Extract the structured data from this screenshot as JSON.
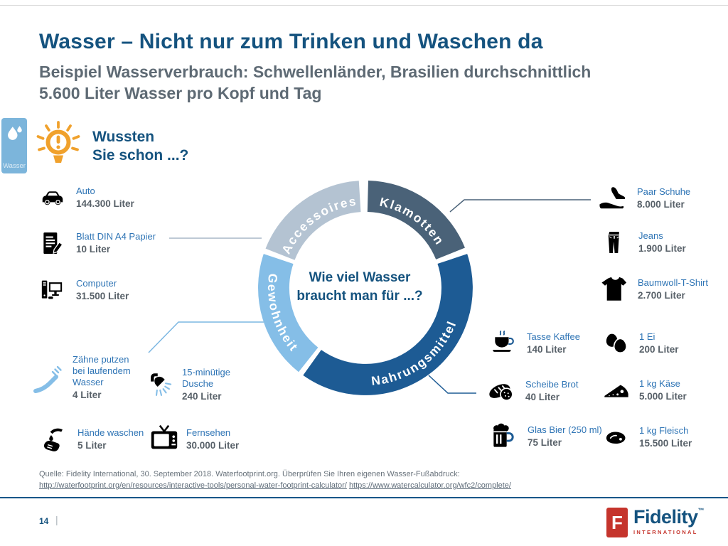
{
  "page": {
    "title": "Wasser – Nicht nur zum Trinken und Waschen da",
    "subtitle": "Beispiel Wasserverbrauch: Schwellenländer, Brasilien durchschnittlich\n5.600 Liter Wasser pro Kopf und Tag",
    "sidebar_tab_label": "Wasser",
    "callout_heading": "Wussten\nSie schon ...?"
  },
  "chart_data": {
    "type": "donut",
    "title": "Wie viel Wasser braucht man für ...?",
    "center_label": "Wie viel Wasser\nbraucht man für ...?",
    "unit": "Liter",
    "legend_position": "on-segments",
    "segments": [
      {
        "label": "Klamotten",
        "color": "#4a6278",
        "start_deg": 1.5,
        "end_deg": 68
      },
      {
        "label": "Nahrungsmittel",
        "color": "#1d5b94",
        "start_deg": 71.5,
        "end_deg": 215.5
      },
      {
        "label": "Gewohnheit",
        "color": "#85bee7",
        "start_deg": 218.5,
        "end_deg": 288.5
      },
      {
        "label": "Accessoires",
        "color": "#b4c3d2",
        "start_deg": 291.5,
        "end_deg": 356.5
      }
    ],
    "items": {
      "auto": {
        "category": "Accessoires",
        "label": "Auto",
        "value": "144.300 Liter",
        "liters": 144300
      },
      "papier": {
        "category": "Accessoires",
        "label": "Blatt DIN A4 Papier",
        "value": "10 Liter",
        "liters": 10
      },
      "computer": {
        "category": "Accessoires",
        "label": "Computer",
        "value": "31.500 Liter",
        "liters": 31500
      },
      "zaehne": {
        "category": "Gewohnheit",
        "label": "Zähne putzen\nbei laufendem\nWasser",
        "value": "4 Liter",
        "liters": 4
      },
      "dusche": {
        "category": "Gewohnheit",
        "label": "15-minütige\nDusche",
        "value": "240 Liter",
        "liters": 240
      },
      "haende": {
        "category": "Gewohnheit",
        "label": "Hände waschen",
        "value": "5 Liter",
        "liters": 5
      },
      "fernsehen": {
        "category": "Gewohnheit",
        "label": "Fernsehen",
        "value": "30.000 Liter",
        "liters": 30000
      },
      "schuhe": {
        "category": "Klamotten",
        "label": "Paar Schuhe",
        "value": "8.000 Liter",
        "liters": 8000
      },
      "jeans": {
        "category": "Klamotten",
        "label": "Jeans",
        "value": "1.900 Liter",
        "liters": 1900
      },
      "tshirt": {
        "category": "Klamotten",
        "label": "Baumwoll-T-Shirt",
        "value": "2.700 Liter",
        "liters": 2700
      },
      "kaffee": {
        "category": "Nahrungsmittel",
        "label": "Tasse Kaffee",
        "value": "140 Liter",
        "liters": 140
      },
      "ei": {
        "category": "Nahrungsmittel",
        "label": "1 Ei",
        "value": "200 Liter",
        "liters": 200
      },
      "brot": {
        "category": "Nahrungsmittel",
        "label": "Scheibe Brot",
        "value": "40 Liter",
        "liters": 40
      },
      "kaese": {
        "category": "Nahrungsmittel",
        "label": "1 kg Käse",
        "value": "5.000 Liter",
        "liters": 5000
      },
      "bier": {
        "category": "Nahrungsmittel",
        "label": "Glas Bier (250 ml)",
        "value": "75 Liter",
        "liters": 75
      },
      "fleisch": {
        "category": "Nahrungsmittel",
        "label": "1 kg Fleisch",
        "value": "15.500 Liter",
        "liters": 15500
      }
    }
  },
  "source": {
    "line1": "Quelle: Fidelity International, 30. September 2018. Waterfootprint.org. Überprüfen Sie Ihren eigenen Wasser-Fußabdruck:",
    "link1": "http://waterfootprint.org/en/resources/interactive-tools/personal-water-footprint-calculator/",
    "link2": "https://www.watercalculator.org/wfc2/complete/"
  },
  "footer": {
    "page_number": "14",
    "separator": "|",
    "logo_text": "Fidelity",
    "logo_tm": "™",
    "logo_sub": "INTERNATIONAL"
  },
  "colors": {
    "title_blue": "#15537f",
    "subtitle_gray": "#5e6a74",
    "item_label_blue": "#2e74b5",
    "item_value_gray": "#586169",
    "divider_blue": "#175689",
    "tab_blue": "#7cb5db",
    "bulb_orange": "#f0a12c",
    "logo_red": "#c5342c"
  }
}
